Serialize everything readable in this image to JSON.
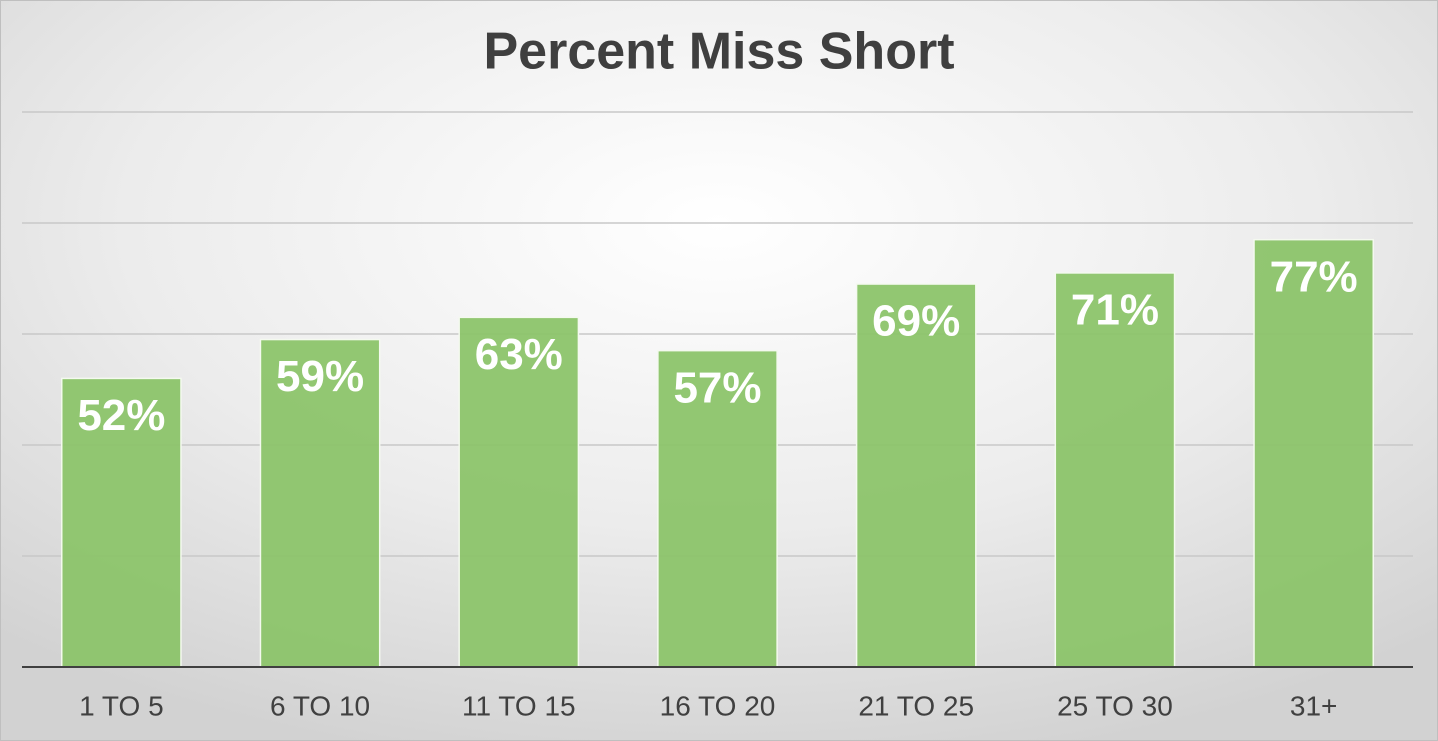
{
  "chart_data": {
    "type": "bar",
    "title": "Percent Miss Short",
    "categories": [
      "1 TO 5",
      "6 TO 10",
      "11 TO 15",
      "16 TO 20",
      "21 TO 25",
      "25 TO 30",
      "31+"
    ],
    "values": [
      52,
      59,
      63,
      57,
      69,
      71,
      77
    ],
    "value_labels": [
      "52%",
      "59%",
      "63%",
      "57%",
      "69%",
      "71%",
      "77%"
    ],
    "color": "#8cc46a",
    "ylim": [
      0,
      100
    ],
    "yticks": [
      0,
      20,
      40,
      60,
      80,
      100
    ],
    "grid": true
  }
}
